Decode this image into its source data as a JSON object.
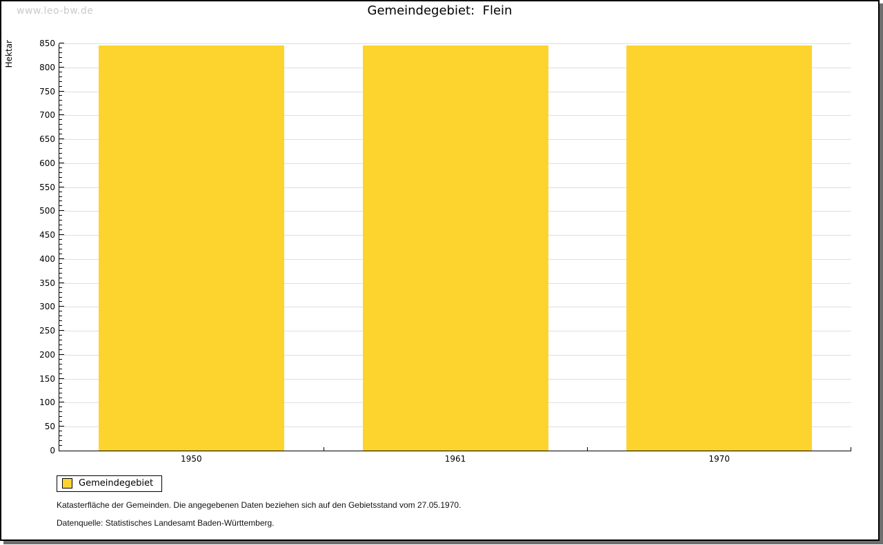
{
  "watermark": "www.leo-bw.de",
  "header": {
    "title": "Gemeindegebiet:  Flein"
  },
  "chart_data": {
    "type": "bar",
    "categories": [
      "1950",
      "1961",
      "1970"
    ],
    "series": [
      {
        "name": "Gemeindegebiet",
        "values": [
          846,
          846,
          846
        ]
      }
    ],
    "title": "Gemeindegebiet: Flein",
    "xlabel": "",
    "ylabel": "Hektar",
    "ylim": [
      0,
      850
    ],
    "ytick_major": 50,
    "ytick_minor": 10,
    "grid": true,
    "legend_position": "bottom-left",
    "bar_color": "#fcd42d",
    "grid_color": "#dedede"
  },
  "legend": {
    "items": [
      {
        "label": "Gemeindegebiet",
        "color": "#fcd42d"
      }
    ]
  },
  "footnotes": [
    "Katasterfläche der Gemeinden. Die angegebenen Daten beziehen sich auf den Gebietsstand vom 27.05.1970.",
    "Datenquelle: Statistisches Landesamt Baden-Württemberg."
  ]
}
